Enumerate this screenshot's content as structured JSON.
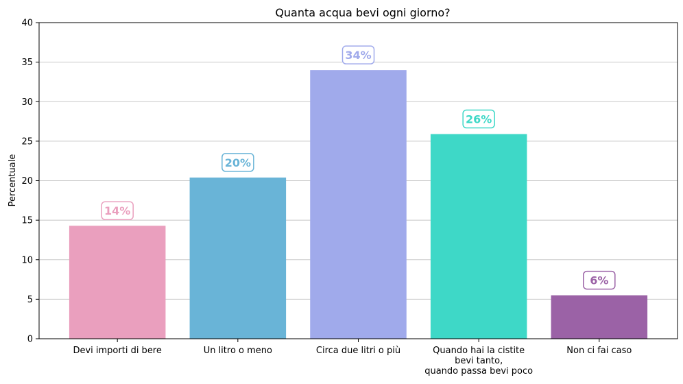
{
  "chart_data": {
    "type": "bar",
    "title": "Quanta acqua bevi ogni giorno?",
    "xlabel": "",
    "ylabel": "Percentuale",
    "ylim": [
      0,
      40
    ],
    "yticks": [
      "0",
      "5",
      "10",
      "15",
      "20",
      "25",
      "30",
      "35",
      "40"
    ],
    "grid": "horizontal",
    "categories": [
      [
        "Devi importi di bere"
      ],
      [
        "Un litro o meno"
      ],
      [
        "Circa due litri o più"
      ],
      [
        "Quando hai la cistite",
        "bevi tanto,",
        "quando passa bevi poco"
      ],
      [
        "Non ci fai caso"
      ]
    ],
    "values": [
      14.3,
      20.4,
      34.0,
      25.9,
      5.5
    ],
    "data_labels": [
      "14%",
      "20%",
      "34%",
      "26%",
      "6%"
    ],
    "colors": [
      "#EA9FBE",
      "#69B4D7",
      "#A0AAEB",
      "#3ED8C7",
      "#9B62A6"
    ]
  }
}
